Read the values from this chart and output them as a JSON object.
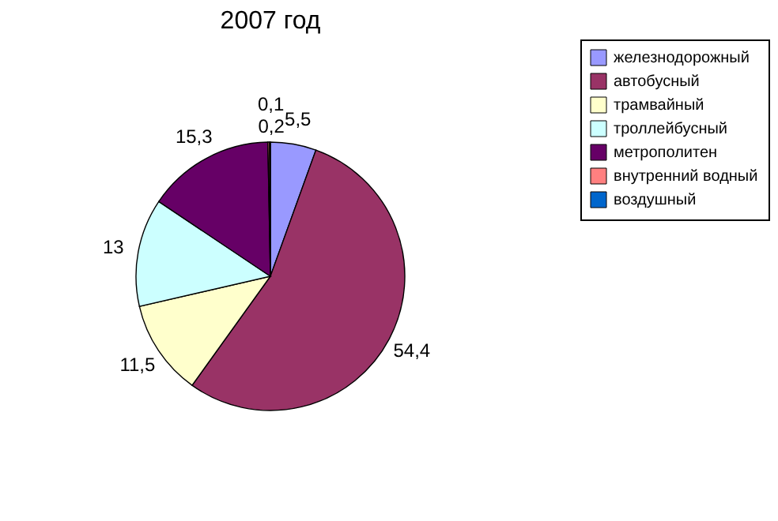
{
  "chart_data": {
    "type": "pie",
    "title": "2007 год",
    "categories": [
      "железнодорожный",
      "автобусный",
      "трамвайный",
      "троллейбусный",
      "метрополитен",
      "внутренний водный",
      "воздушный"
    ],
    "values": [
      5.5,
      54.4,
      11.5,
      13,
      15.3,
      0.2,
      0.1
    ],
    "value_labels": [
      "5,5",
      "54,4",
      "11,5",
      "13",
      "15,3",
      "0,2",
      "0,1"
    ],
    "colors": [
      "#9999ff",
      "#993366",
      "#ffffcc",
      "#ccffff",
      "#660066",
      "#ff8080",
      "#0066cc"
    ],
    "legend": "right"
  }
}
